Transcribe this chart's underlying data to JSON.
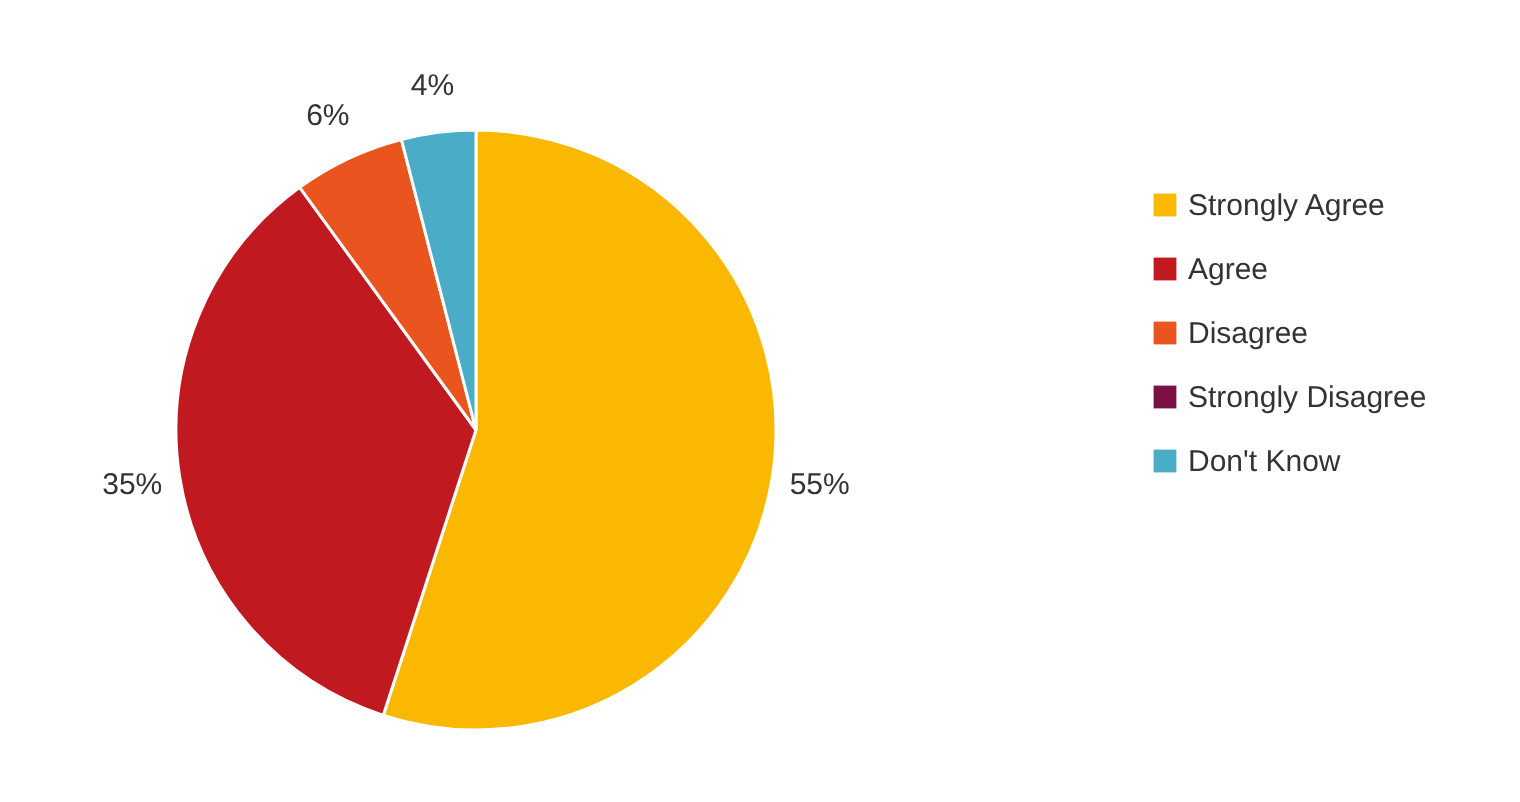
{
  "chart_data": {
    "type": "pie",
    "categories": [
      "Strongly Agree",
      "Agree",
      "Disagree",
      "Strongly Disagree",
      "Don't Know"
    ],
    "values": [
      55,
      35,
      6,
      0,
      4
    ],
    "colors": [
      "#fbb800",
      "#c0191f",
      "#e9541f",
      "#7b1246",
      "#4aacc6"
    ],
    "value_labels": [
      "55%",
      "35%",
      "6%",
      null,
      "4%"
    ],
    "legend": "right"
  }
}
